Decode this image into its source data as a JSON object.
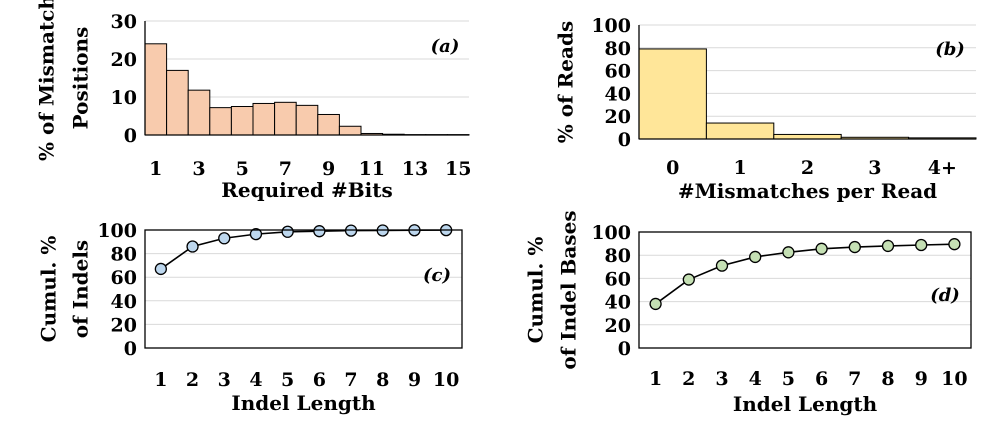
{
  "chart_data": [
    {
      "id": "a",
      "type": "bar",
      "panel_label": "(a)",
      "xlabel": "Required #Bits",
      "ylabel_lines": [
        "% of Mismatch",
        "Positions"
      ],
      "categories": [
        "1",
        "2",
        "3",
        "4",
        "5",
        "6",
        "7",
        "8",
        "9",
        "10",
        "11",
        "12",
        "13",
        "14",
        "15"
      ],
      "x_tick_labels": [
        "1",
        "",
        "3",
        "",
        "5",
        "",
        "7",
        "",
        "9",
        "",
        "11",
        "",
        "13",
        "",
        "15"
      ],
      "values": [
        24,
        17,
        11.8,
        7.2,
        7.5,
        8.3,
        8.6,
        7.8,
        5.4,
        2.3,
        0.4,
        0.2,
        0.1,
        0.1,
        0.1
      ],
      "ylim": [
        0,
        30
      ],
      "yticks": [
        0,
        10,
        20,
        30
      ],
      "bar_color": "#f8cbad",
      "bar_edge": "#000000"
    },
    {
      "id": "b",
      "type": "bar",
      "panel_label": "(b)",
      "xlabel": "#Mismatches per Read",
      "ylabel_lines": [
        "% of Reads"
      ],
      "categories": [
        "0",
        "1",
        "2",
        "3",
        "4+"
      ],
      "x_tick_labels": [
        "0",
        "1",
        "2",
        "3",
        "4+"
      ],
      "values": [
        79,
        14,
        4,
        1.5,
        1
      ],
      "ylim": [
        0,
        100
      ],
      "yticks": [
        0,
        20,
        40,
        60,
        80,
        100
      ],
      "bar_color": "#ffe699",
      "bar_edge": "#000000"
    },
    {
      "id": "c",
      "type": "line",
      "panel_label": "(c)",
      "xlabel": "Indel Length",
      "ylabel_lines": [
        "Cumul. %",
        "of Indels"
      ],
      "x": [
        1,
        2,
        3,
        4,
        5,
        6,
        7,
        8,
        9,
        10
      ],
      "x_tick_labels": [
        "1",
        "2",
        "3",
        "4",
        "5",
        "6",
        "7",
        "8",
        "9",
        "10"
      ],
      "values": [
        67,
        86,
        93,
        96.5,
        98.5,
        99,
        99.5,
        99.6,
        99.8,
        99.9
      ],
      "ylim": [
        0,
        100
      ],
      "yticks": [
        0,
        20,
        40,
        60,
        80,
        100
      ],
      "marker_color": "#bdd7ee",
      "line_color": "#000000"
    },
    {
      "id": "d",
      "type": "line",
      "panel_label": "(d)",
      "xlabel": "Indel Length",
      "ylabel_lines": [
        "Cumul. %",
        "of Indel Bases"
      ],
      "x": [
        1,
        2,
        3,
        4,
        5,
        6,
        7,
        8,
        9,
        10
      ],
      "x_tick_labels": [
        "1",
        "2",
        "3",
        "4",
        "5",
        "6",
        "7",
        "8",
        "9",
        "10"
      ],
      "values": [
        38,
        59,
        71,
        78.5,
        82.5,
        85.5,
        87,
        88,
        88.8,
        89.5
      ],
      "ylim": [
        0,
        100
      ],
      "yticks": [
        0,
        20,
        40,
        60,
        80,
        100
      ],
      "marker_color": "#c5e0b4",
      "line_color": "#000000"
    }
  ]
}
